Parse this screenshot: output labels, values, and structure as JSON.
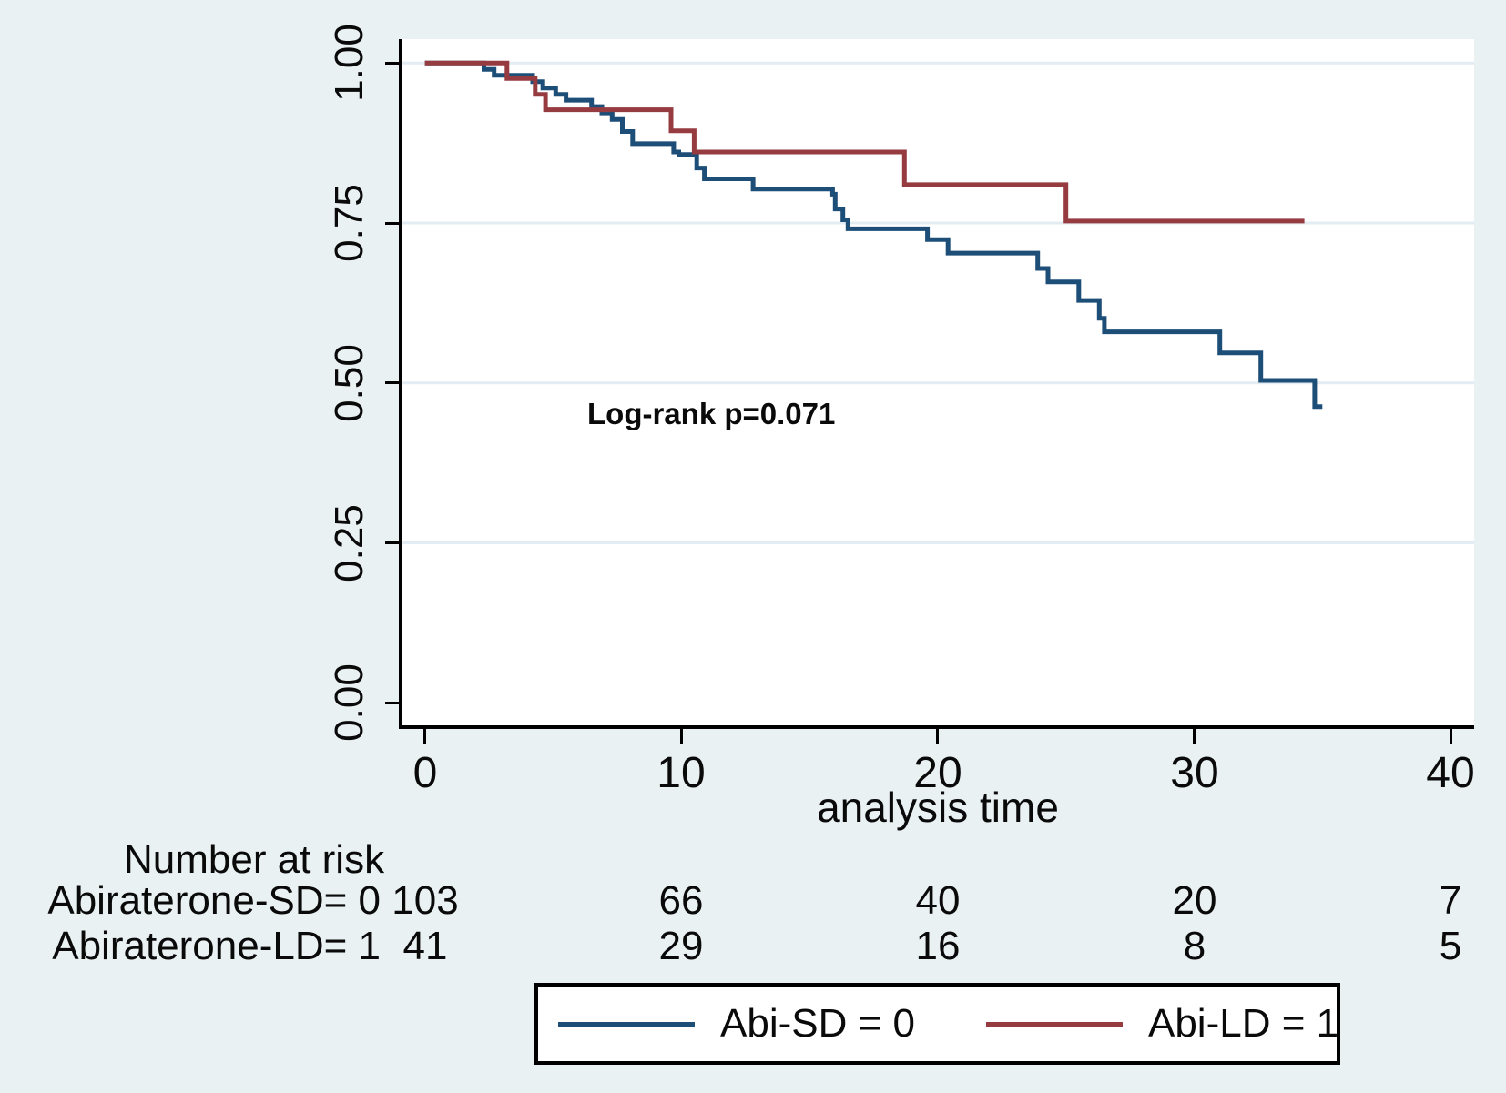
{
  "figure": {
    "background": "#eaf1f3",
    "plot_background": "#ffffff",
    "gridline_color": "#e3ecf2",
    "axis_color": "#000000"
  },
  "chart_data": {
    "type": "line",
    "subtype": "kaplan_meier_step",
    "title": "",
    "xlabel": "analysis time",
    "ylabel": "",
    "xlim": [
      0,
      40
    ],
    "ylim": [
      0,
      1
    ],
    "x_ticks": [
      "0",
      "10",
      "20",
      "30",
      "40"
    ],
    "x_tick_values": [
      0,
      10,
      20,
      30,
      40
    ],
    "y_ticks": [
      "0.00",
      "0.25",
      "0.50",
      "0.75",
      "1.00"
    ],
    "y_tick_values": [
      0,
      0.25,
      0.5,
      0.75,
      1.0
    ],
    "y_gridline_values": [
      1.0,
      0.75,
      0.5,
      0.25
    ],
    "grid": "horizontal",
    "legend_position": "bottom-box",
    "annotation": {
      "text": "Log-rank p=0.071",
      "x": 6.3,
      "y": 0.45
    },
    "series": [
      {
        "name": "Abi-SD = 0",
        "color": "#1d4e78",
        "end_time": 35.0,
        "steps": [
          [
            0,
            1.0
          ],
          [
            2.3,
            0.99
          ],
          [
            2.7,
            0.981
          ],
          [
            4.2,
            0.971
          ],
          [
            4.6,
            0.961
          ],
          [
            5.1,
            0.951
          ],
          [
            5.5,
            0.942
          ],
          [
            6.5,
            0.932
          ],
          [
            6.9,
            0.922
          ],
          [
            7.3,
            0.912
          ],
          [
            7.7,
            0.893
          ],
          [
            8.1,
            0.874
          ],
          [
            9.7,
            0.861
          ],
          [
            9.9,
            0.857
          ],
          [
            10.6,
            0.836
          ],
          [
            10.9,
            0.819
          ],
          [
            12.8,
            0.803
          ],
          [
            15.9,
            0.795
          ],
          [
            16.0,
            0.772
          ],
          [
            16.3,
            0.755
          ],
          [
            16.5,
            0.741
          ],
          [
            19.6,
            0.724
          ],
          [
            20.4,
            0.703
          ],
          [
            23.9,
            0.679
          ],
          [
            24.3,
            0.658
          ],
          [
            25.5,
            0.629
          ],
          [
            26.3,
            0.601
          ],
          [
            26.5,
            0.58
          ],
          [
            31.0,
            0.547
          ],
          [
            32.6,
            0.504
          ],
          [
            34.7,
            0.463
          ]
        ]
      },
      {
        "name": "Abi-LD = 1",
        "color": "#963b40",
        "end_time": 34.3,
        "steps": [
          [
            0,
            1.0
          ],
          [
            3.2,
            0.976
          ],
          [
            4.3,
            0.951
          ],
          [
            4.7,
            0.927
          ],
          [
            9.6,
            0.894
          ],
          [
            10.5,
            0.861
          ],
          [
            18.7,
            0.81
          ],
          [
            25.0,
            0.753
          ]
        ]
      }
    ],
    "risk_table": {
      "header": "Number at risk",
      "times": [
        0,
        10,
        20,
        30,
        40
      ],
      "rows": [
        {
          "label": "Abiraterone-SD= 0",
          "counts": [
            "103",
            "66",
            "40",
            "20",
            "7"
          ]
        },
        {
          "label": "Abiraterone-LD= 1",
          "counts": [
            "41",
            "29",
            "16",
            "8",
            "5"
          ]
        }
      ]
    }
  }
}
